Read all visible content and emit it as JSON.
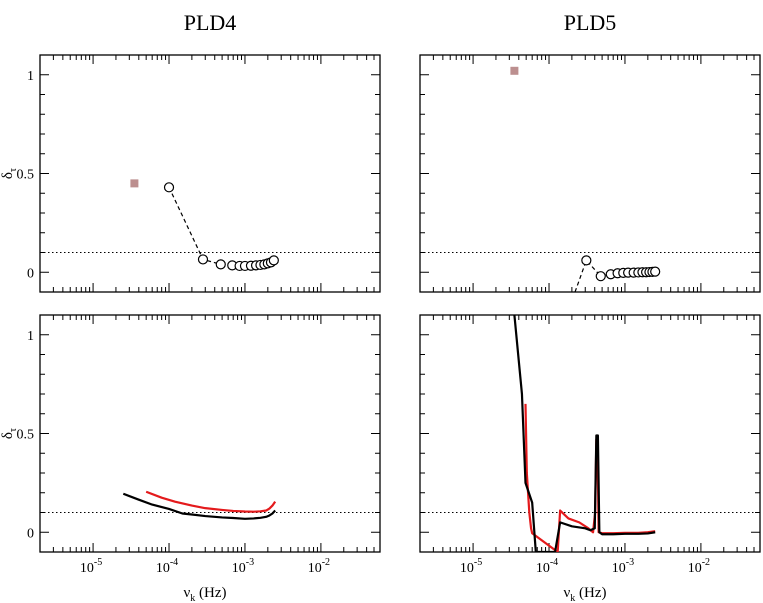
{
  "chart_data": [
    {
      "id": "pld4-top",
      "column_title": "PLD4",
      "type": "scatter",
      "ylabel": "δ",
      "ylabel_sub": "τ",
      "xlabel": "",
      "xscale": "log",
      "xlim": [
        2e-06,
        0.06
      ],
      "ylim": [
        -0.1,
        1.1
      ],
      "yticks": [
        {
          "v": 0,
          "label": "0"
        },
        {
          "v": 0.5,
          "label": "0.5"
        },
        {
          "v": 1,
          "label": "1"
        }
      ],
      "xticks": [],
      "threshold_line": 0.1,
      "series": [
        {
          "style": "circles-dashed",
          "color": "#000000",
          "x": [
            0.0001,
            0.00028,
            0.00048,
            0.00068,
            0.00085,
            0.001,
            0.0012,
            0.0014,
            0.0016,
            0.0018,
            0.002,
            0.0022,
            0.0024
          ],
          "y": [
            0.43,
            0.065,
            0.04,
            0.035,
            0.032,
            0.032,
            0.033,
            0.035,
            0.037,
            0.04,
            0.045,
            0.05,
            0.06
          ]
        },
        {
          "style": "square",
          "color": "#bc8f8f",
          "x": [
            3.5e-05
          ],
          "y": [
            0.45
          ]
        }
      ]
    },
    {
      "id": "pld5-top",
      "column_title": "PLD5",
      "type": "scatter",
      "ylabel": "",
      "ylabel_sub": "",
      "xlabel": "",
      "xscale": "log",
      "xlim": [
        2e-06,
        0.06
      ],
      "ylim": [
        -0.1,
        1.1
      ],
      "yticks": [],
      "xticks": [],
      "threshold_line": 0.1,
      "series": [
        {
          "style": "circles-dashed",
          "color": "#000000",
          "x": [
            0.00022,
            0.00031,
            0.00048,
            0.00065,
            0.0008,
            0.00095,
            0.0011,
            0.0013,
            0.0015,
            0.0017,
            0.0019,
            0.0021,
            0.0023,
            0.0025
          ],
          "y": [
            -0.1,
            0.06,
            -0.02,
            -0.01,
            -0.005,
            -0.003,
            -0.002,
            -0.002,
            -0.001,
            0.0,
            0.0,
            0.001,
            0.002,
            0.003
          ]
        },
        {
          "style": "square",
          "color": "#bc8f8f",
          "x": [
            3.5e-05
          ],
          "y": [
            1.02
          ]
        }
      ]
    },
    {
      "id": "pld4-bottom",
      "column_title": "",
      "type": "line",
      "ylabel": "δ",
      "ylabel_sub": "τ",
      "xlabel": "ν",
      "xlabel_sub": "k",
      "xlabel_unit": " (Hz)",
      "xscale": "log",
      "xlim": [
        2e-06,
        0.06
      ],
      "ylim": [
        -0.1,
        1.1
      ],
      "yticks": [
        {
          "v": 0,
          "label": "0"
        },
        {
          "v": 0.5,
          "label": "0.5"
        },
        {
          "v": 1,
          "label": "1"
        }
      ],
      "xticks": [
        {
          "v": 1e-05,
          "base": "10",
          "exp": "-5"
        },
        {
          "v": 0.0001,
          "base": "10",
          "exp": "-4"
        },
        {
          "v": 0.001,
          "base": "10",
          "exp": "-3"
        },
        {
          "v": 0.01,
          "base": "10",
          "exp": "-2"
        }
      ],
      "threshold_line": 0.1,
      "series": [
        {
          "style": "line",
          "color": "#e41a1c",
          "x": [
            5e-05,
            8e-05,
            0.00012,
            0.0002,
            0.0003,
            0.0005,
            0.0007,
            0.001,
            0.0013,
            0.0016,
            0.0019,
            0.0021,
            0.0023,
            0.0025
          ],
          "y": [
            0.205,
            0.175,
            0.155,
            0.135,
            0.122,
            0.113,
            0.108,
            0.105,
            0.104,
            0.106,
            0.11,
            0.12,
            0.135,
            0.155
          ]
        },
        {
          "style": "line",
          "color": "#000000",
          "x": [
            2.5e-05,
            4e-05,
            6e-05,
            0.0001,
            0.00015,
            0.0002,
            0.0003,
            0.0005,
            0.0007,
            0.001,
            0.0013,
            0.0016,
            0.0019,
            0.0021,
            0.0023,
            0.0025
          ],
          "y": [
            0.195,
            0.165,
            0.14,
            0.118,
            0.095,
            0.09,
            0.082,
            0.075,
            0.072,
            0.068,
            0.07,
            0.073,
            0.078,
            0.085,
            0.095,
            0.11
          ]
        }
      ]
    },
    {
      "id": "pld5-bottom",
      "column_title": "",
      "type": "line",
      "ylabel": "",
      "ylabel_sub": "",
      "xlabel": "ν",
      "xlabel_sub": "k",
      "xlabel_unit": " (Hz)",
      "xscale": "log",
      "xlim": [
        2e-06,
        0.06
      ],
      "ylim": [
        -0.1,
        1.1
      ],
      "yticks": [],
      "xticks": [
        {
          "v": 1e-05,
          "base": "10",
          "exp": "-5"
        },
        {
          "v": 0.0001,
          "base": "10",
          "exp": "-4"
        },
        {
          "v": 0.001,
          "base": "10",
          "exp": "-3"
        },
        {
          "v": 0.01,
          "base": "10",
          "exp": "-2"
        }
      ],
      "threshold_line": 0.1,
      "series": [
        {
          "style": "line",
          "color": "#e41a1c",
          "x": [
            4.9e-05,
            5.1e-05,
            5.5e-05,
            5.8e-05,
            6e-05,
            0.00013,
            0.00014,
            0.00018,
            0.00025,
            0.00033,
            0.00038,
            0.000405,
            0.00042,
            0.00044,
            0.00045,
            0.0005,
            0.0007,
            0.001,
            0.0015,
            0.002,
            0.0025
          ],
          "y": [
            0.65,
            0.3,
            0.1,
            0.02,
            -0.005,
            -0.1,
            0.11,
            0.07,
            0.05,
            0.02,
            0.0,
            0.1,
            0.47,
            0.3,
            0.0,
            -0.005,
            -0.005,
            -0.003,
            -0.003,
            0.0,
            0.005
          ]
        },
        {
          "style": "line",
          "color": "#000000",
          "x": [
            3.5e-05,
            4.4e-05,
            4.9e-05,
            6e-05,
            6.7e-05,
            0.00012,
            0.00014,
            0.0002,
            0.0003,
            0.00035,
            0.0004,
            0.00042,
            0.00044,
            0.00046,
            0.0005,
            0.0007,
            0.001,
            0.0015,
            0.002,
            0.0025
          ],
          "y": [
            1.1,
            0.7,
            0.25,
            0.15,
            -0.1,
            -0.1,
            0.05,
            0.03,
            0.02,
            0.01,
            0.02,
            0.49,
            0.49,
            0.0,
            -0.01,
            -0.01,
            -0.008,
            -0.008,
            -0.006,
            0.0
          ]
        }
      ]
    }
  ]
}
